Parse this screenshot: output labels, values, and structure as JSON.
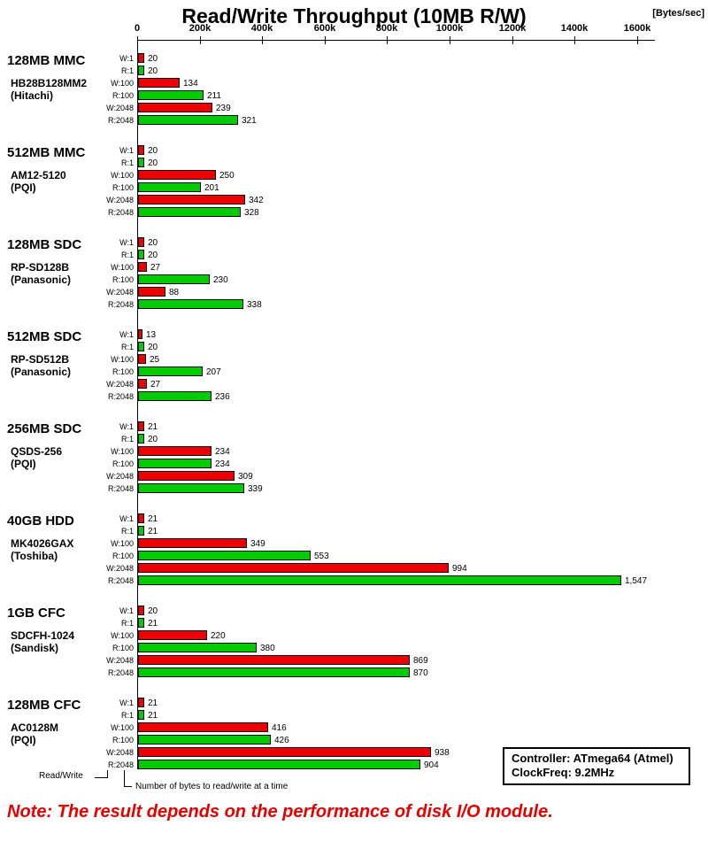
{
  "chart_data": {
    "type": "bar",
    "orientation": "horizontal",
    "title": "Read/Write Throughput (10MB R/W)",
    "unit_label": "[Bytes/sec]",
    "x_axis": {
      "position": "top",
      "tick_labels": [
        "0",
        "200k",
        "400k",
        "600k",
        "800k",
        "1000k",
        "1200k",
        "1400k",
        "1600k"
      ],
      "tick_values": [
        0,
        200000,
        400000,
        600000,
        800000,
        1000000,
        1200000,
        1400000,
        1600000
      ],
      "range": [
        0,
        1660000
      ],
      "grid": false
    },
    "row_labels": [
      "W:1",
      "R:1",
      "W:100",
      "R:100",
      "W:2048",
      "R:2048"
    ],
    "series_colors": {
      "write": "#ee0000",
      "read": "#00cc00"
    },
    "groups": [
      {
        "device": "128MB MMC",
        "model": "HB28B128MM2",
        "maker": "(Hitachi)",
        "bars": [
          {
            "label": "W:1",
            "kind": "write",
            "value_k": 20,
            "display": "20"
          },
          {
            "label": "R:1",
            "kind": "read",
            "value_k": 20,
            "display": "20"
          },
          {
            "label": "W:100",
            "kind": "write",
            "value_k": 134,
            "display": "134"
          },
          {
            "label": "R:100",
            "kind": "read",
            "value_k": 211,
            "display": "211"
          },
          {
            "label": "W:2048",
            "kind": "write",
            "value_k": 239,
            "display": "239"
          },
          {
            "label": "R:2048",
            "kind": "read",
            "value_k": 321,
            "display": "321"
          }
        ]
      },
      {
        "device": "512MB MMC",
        "model": "AM12-5120",
        "maker": "(PQI)",
        "bars": [
          {
            "label": "W:1",
            "kind": "write",
            "value_k": 20,
            "display": "20"
          },
          {
            "label": "R:1",
            "kind": "read",
            "value_k": 20,
            "display": "20"
          },
          {
            "label": "W:100",
            "kind": "write",
            "value_k": 250,
            "display": "250"
          },
          {
            "label": "R:100",
            "kind": "read",
            "value_k": 201,
            "display": "201"
          },
          {
            "label": "W:2048",
            "kind": "write",
            "value_k": 342,
            "display": "342"
          },
          {
            "label": "R:2048",
            "kind": "read",
            "value_k": 328,
            "display": "328"
          }
        ]
      },
      {
        "device": "128MB SDC",
        "model": "RP-SD128B",
        "maker": "(Panasonic)",
        "bars": [
          {
            "label": "W:1",
            "kind": "write",
            "value_k": 20,
            "display": "20"
          },
          {
            "label": "R:1",
            "kind": "read",
            "value_k": 20,
            "display": "20"
          },
          {
            "label": "W:100",
            "kind": "write",
            "value_k": 27,
            "display": "27"
          },
          {
            "label": "R:100",
            "kind": "read",
            "value_k": 230,
            "display": "230"
          },
          {
            "label": "W:2048",
            "kind": "write",
            "value_k": 88,
            "display": "88"
          },
          {
            "label": "R:2048",
            "kind": "read",
            "value_k": 338,
            "display": "338"
          }
        ]
      },
      {
        "device": "512MB SDC",
        "model": "RP-SD512B",
        "maker": "(Panasonic)",
        "bars": [
          {
            "label": "W:1",
            "kind": "write",
            "value_k": 13,
            "display": "13"
          },
          {
            "label": "R:1",
            "kind": "read",
            "value_k": 20,
            "display": "20"
          },
          {
            "label": "W:100",
            "kind": "write",
            "value_k": 25,
            "display": "25"
          },
          {
            "label": "R:100",
            "kind": "read",
            "value_k": 207,
            "display": "207"
          },
          {
            "label": "W:2048",
            "kind": "write",
            "value_k": 27,
            "display": "27"
          },
          {
            "label": "R:2048",
            "kind": "read",
            "value_k": 236,
            "display": "236"
          }
        ]
      },
      {
        "device": "256MB SDC",
        "model": "QSDS-256",
        "maker": "(PQI)",
        "bars": [
          {
            "label": "W:1",
            "kind": "write",
            "value_k": 21,
            "display": "21"
          },
          {
            "label": "R:1",
            "kind": "read",
            "value_k": 20,
            "display": "20"
          },
          {
            "label": "W:100",
            "kind": "write",
            "value_k": 234,
            "display": "234"
          },
          {
            "label": "R:100",
            "kind": "read",
            "value_k": 234,
            "display": "234"
          },
          {
            "label": "W:2048",
            "kind": "write",
            "value_k": 309,
            "display": "309"
          },
          {
            "label": "R:2048",
            "kind": "read",
            "value_k": 339,
            "display": "339"
          }
        ]
      },
      {
        "device": "40GB HDD",
        "model": "MK4026GAX",
        "maker": "(Toshiba)",
        "bars": [
          {
            "label": "W:1",
            "kind": "write",
            "value_k": 21,
            "display": "21"
          },
          {
            "label": "R:1",
            "kind": "read",
            "value_k": 21,
            "display": "21"
          },
          {
            "label": "W:100",
            "kind": "write",
            "value_k": 349,
            "display": "349"
          },
          {
            "label": "R:100",
            "kind": "read",
            "value_k": 553,
            "display": "553"
          },
          {
            "label": "W:2048",
            "kind": "write",
            "value_k": 994,
            "display": "994"
          },
          {
            "label": "R:2048",
            "kind": "read",
            "value_k": 1547,
            "display": "1,547"
          }
        ]
      },
      {
        "device": "1GB CFC",
        "model": "SDCFH-1024",
        "maker": "(Sandisk)",
        "bars": [
          {
            "label": "W:1",
            "kind": "write",
            "value_k": 20,
            "display": "20"
          },
          {
            "label": "R:1",
            "kind": "read",
            "value_k": 21,
            "display": "21"
          },
          {
            "label": "W:100",
            "kind": "write",
            "value_k": 220,
            "display": "220"
          },
          {
            "label": "R:100",
            "kind": "read",
            "value_k": 380,
            "display": "380"
          },
          {
            "label": "W:2048",
            "kind": "write",
            "value_k": 869,
            "display": "869"
          },
          {
            "label": "R:2048",
            "kind": "read",
            "value_k": 870,
            "display": "870"
          }
        ]
      },
      {
        "device": "128MB CFC",
        "model": "AC0128M",
        "maker": "(PQI)",
        "bars": [
          {
            "label": "W:1",
            "kind": "write",
            "value_k": 21,
            "display": "21"
          },
          {
            "label": "R:1",
            "kind": "read",
            "value_k": 21,
            "display": "21"
          },
          {
            "label": "W:100",
            "kind": "write",
            "value_k": 416,
            "display": "416"
          },
          {
            "label": "R:100",
            "kind": "read",
            "value_k": 426,
            "display": "426"
          },
          {
            "label": "W:2048",
            "kind": "write",
            "value_k": 938,
            "display": "938"
          },
          {
            "label": "R:2048",
            "kind": "read",
            "value_k": 904,
            "display": "904"
          }
        ]
      }
    ]
  },
  "legend": {
    "controller": "Controller: ATmega64 (Atmel)",
    "clockfreq": "ClockFreq: 9.2MHz"
  },
  "footnotes": {
    "read_write": "Read/Write",
    "bytes_note": "Number of bytes to read/write at a time"
  },
  "note": "Note: The result depends on the performance of disk I/O module."
}
